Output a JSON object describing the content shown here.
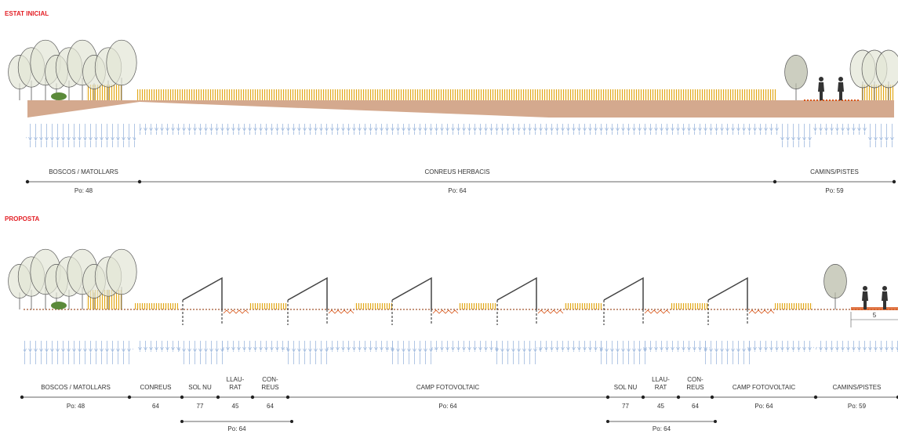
{
  "sections": [
    {
      "title": "ESTAT INICIAL",
      "segments": [
        {
          "label": [
            "BOSCOS / MATOLLARS"
          ],
          "value": "Po: 48"
        },
        {
          "label": [
            "CONREUS HERBACIS"
          ],
          "value": "Po: 64"
        },
        {
          "label": [
            "CAMINS/PISTES"
          ],
          "value": "Po: 59"
        }
      ]
    },
    {
      "title": "PROPOSTA",
      "segments": [
        {
          "label": [
            "BOSCOS / MATOLLARS"
          ],
          "value": "Po: 48"
        },
        {
          "label": [
            "CONREUS"
          ],
          "value": "64"
        },
        {
          "label": [
            "SOL NU"
          ],
          "value": "77"
        },
        {
          "label": [
            "LLAU-",
            "RAT"
          ],
          "value": "45"
        },
        {
          "label": [
            "CON-",
            "REUS"
          ],
          "value": "64"
        },
        {
          "label": [
            "CAMP FOTOVOLTAIC"
          ],
          "value": "Po: 64"
        },
        {
          "label": [
            "SOL NU"
          ],
          "value": "77"
        },
        {
          "label": [
            "LLAU-",
            "RAT"
          ],
          "value": "45"
        },
        {
          "label": [
            "CON-",
            "REUS"
          ],
          "value": "64"
        },
        {
          "label": [
            "CAMP FOTOVOLTAIC"
          ],
          "value": "Po: 64"
        },
        {
          "label": [
            "CAMINS/PISTES"
          ],
          "value": "Po: 59"
        }
      ],
      "groups": [
        {
          "value": "Po: 64"
        },
        {
          "value": "Po: 64"
        }
      ],
      "dimension": "5"
    }
  ]
}
